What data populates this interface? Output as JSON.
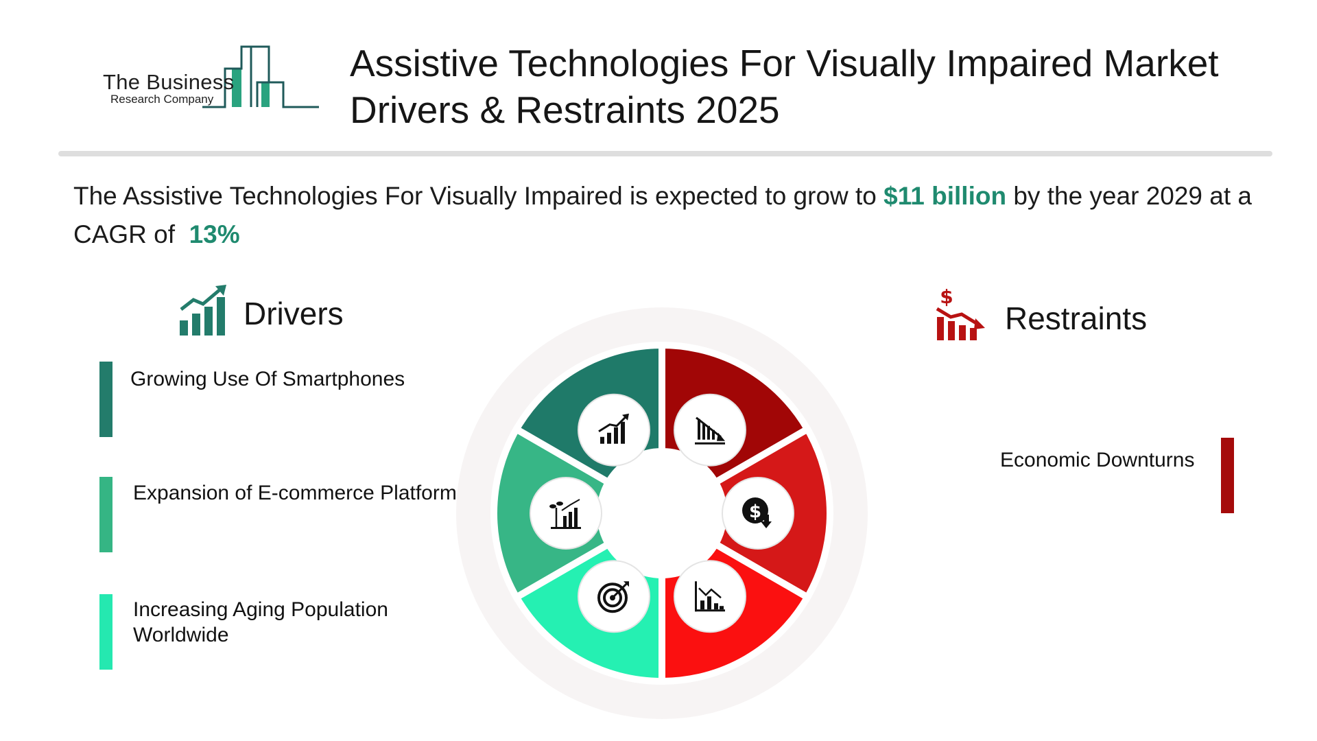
{
  "logo": {
    "name": "The Business",
    "subtitle": "Research Company"
  },
  "title": {
    "line1": "Assistive Technologies For Visually Impaired Market",
    "line2": "Drivers & Restraints 2025"
  },
  "summary": {
    "prefix": "The Assistive Technologies For Visually Impaired is expected to grow to",
    "value": "$11 billion",
    "middle": "by the year 2029 at a CAGR of",
    "cagr": "13%"
  },
  "drivers": {
    "title": "Drivers",
    "items": [
      {
        "label": "Growing Use Of Smartphones",
        "color": "#237c6b"
      },
      {
        "label": "Expansion of E-commerce Platforms",
        "color": "#35b584"
      },
      {
        "label": "Increasing Aging Population Worldwide",
        "color": "#25e8b0"
      }
    ]
  },
  "restraints": {
    "title": "Restraints",
    "items": [
      {
        "label": "Economic Downturns",
        "color": "#a50b0b"
      }
    ]
  },
  "wheel": {
    "segment_colors": [
      "#a10606",
      "#d51818",
      "#fb1010",
      "#25f0b2",
      "#37b686",
      "#1f7a69"
    ],
    "icons": [
      "chart-down-icon",
      "dollar-down-icon",
      "bar-chart-decline-icon",
      "target-icon",
      "plant-growth-icon",
      "chart-up-icon"
    ]
  },
  "colors": {
    "accent_green": "#1f8a6f",
    "accent_red": "#b81212"
  }
}
